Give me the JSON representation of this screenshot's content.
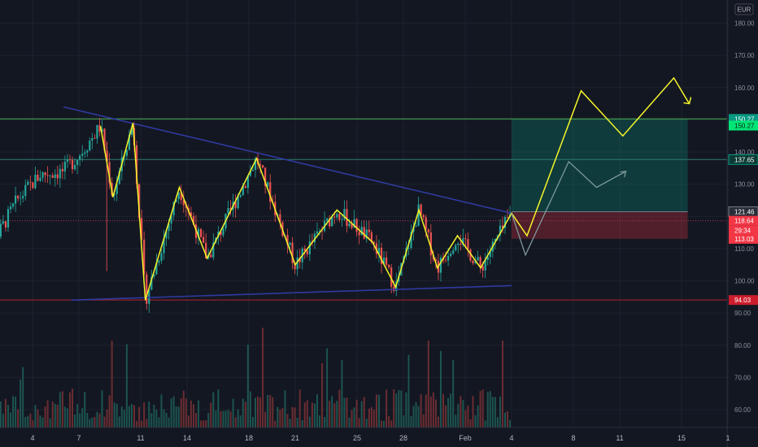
{
  "chart_data": {
    "type": "candlestick",
    "currency": "EUR",
    "price_axis": {
      "ticks": [
        {
          "value": 180,
          "label": "180.00"
        },
        {
          "value": 170,
          "label": "170.00"
        },
        {
          "value": 160,
          "label": "160.00"
        },
        {
          "value": 140,
          "label": "140.00"
        },
        {
          "value": 130,
          "label": "130.00"
        },
        {
          "value": 110,
          "label": "110.00"
        },
        {
          "value": 100,
          "label": "100.00"
        },
        {
          "value": 90,
          "label": "90.00"
        },
        {
          "value": 80,
          "label": "80.00"
        },
        {
          "value": 70,
          "label": "70.00"
        },
        {
          "value": 60,
          "label": "60.00"
        }
      ]
    },
    "date_axis": {
      "ticks": [
        {
          "day": 4,
          "label": "4"
        },
        {
          "day": 7,
          "label": "7"
        },
        {
          "day": 11,
          "label": "11"
        },
        {
          "day": 14,
          "label": "14"
        },
        {
          "day": 18,
          "label": "18"
        },
        {
          "day": 21,
          "label": "21"
        },
        {
          "day": 25,
          "label": "25"
        },
        {
          "day": 28,
          "label": "28"
        },
        {
          "day": 32,
          "label": "Feb"
        },
        {
          "day": 35,
          "label": "4"
        },
        {
          "day": 39,
          "label": "8"
        },
        {
          "day": 42,
          "label": "11"
        },
        {
          "day": 46,
          "label": "15"
        },
        {
          "day": 49,
          "label": "1"
        }
      ]
    },
    "price_tags": [
      {
        "value": 150.27,
        "label": "150.27",
        "color": "#089981",
        "text": "light"
      },
      {
        "value": 148.2,
        "label": "150.27",
        "color": "#00e676",
        "text": "dark"
      },
      {
        "value": 137.65,
        "label": "137.65",
        "color": "#0b3b34",
        "text": "light",
        "border": "#089981"
      },
      {
        "value": 121.46,
        "label": "121.46",
        "color": "#2a2e39",
        "text": "light",
        "border": "#787b86"
      },
      {
        "value": 118.64,
        "label": "118.64",
        "color": "#f23645",
        "text": "light"
      },
      {
        "value": 115.6,
        "label": "29:34",
        "color": "#f23645",
        "text": "light"
      },
      {
        "value": 113.03,
        "label": "113.03",
        "color": "#f23645",
        "text": "light"
      },
      {
        "value": 94.03,
        "label": "94.03",
        "color": "#cc1d2d",
        "text": "light"
      }
    ],
    "horizontal_lines": [
      {
        "value": 150.27,
        "color": "#4caf50",
        "style": "solid"
      },
      {
        "value": 137.65,
        "color": "#2e7d6f",
        "style": "solid"
      },
      {
        "value": 118.64,
        "color": "#b23a48",
        "style": "dotted"
      },
      {
        "value": 94.03,
        "color": "#b2222e",
        "style": "solid"
      }
    ],
    "zigzag_pattern": [
      [
        8.4,
        148
      ],
      [
        9.2,
        126
      ],
      [
        10.5,
        149
      ],
      [
        11.3,
        94
      ],
      [
        13.5,
        129
      ],
      [
        15.3,
        107
      ],
      [
        18.5,
        138
      ],
      [
        21.0,
        105
      ],
      [
        23.7,
        122
      ],
      [
        26.0,
        112
      ],
      [
        27.5,
        98
      ],
      [
        29.0,
        122
      ],
      [
        30.2,
        104
      ],
      [
        31.5,
        114
      ],
      [
        33.0,
        104
      ],
      [
        35.0,
        121
      ],
      [
        36.0,
        114
      ],
      [
        39.5,
        159
      ],
      [
        42.2,
        145
      ],
      [
        45.5,
        163
      ],
      [
        46.5,
        155
      ]
    ],
    "projection_path": [
      [
        35.0,
        121
      ],
      [
        35.9,
        108
      ],
      [
        38.7,
        137
      ],
      [
        40.5,
        129
      ],
      [
        42.4,
        134
      ]
    ],
    "trendlines": [
      {
        "from": [
          6.0,
          154
        ],
        "to": [
          35.0,
          121
        ],
        "color": "#2f3aa0"
      },
      {
        "from": [
          6.5,
          94
        ],
        "to": [
          35.0,
          98.5
        ],
        "color": "#2f3aa0"
      }
    ],
    "position_box": {
      "start_day": 35.0,
      "end_day": 46.4,
      "entry": 121.46,
      "target": 150.27,
      "stop": 113.03
    },
    "volume_axis_note": "volume bars rendered along lower pane"
  }
}
